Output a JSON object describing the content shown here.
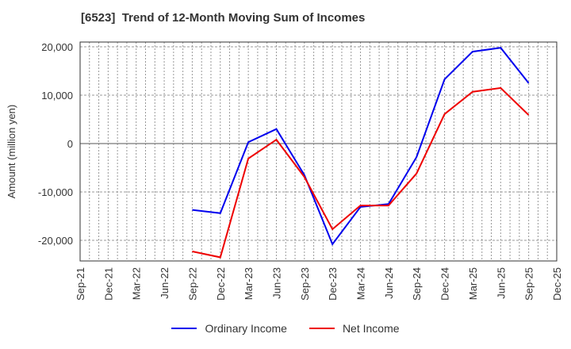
{
  "title": "[6523]  Trend of 12-Month Moving Sum of Incomes",
  "colors": {
    "ordinary": "#0000ee",
    "net": "#ee0000",
    "grid": "#999999",
    "axis": "#333333"
  },
  "chart_data": {
    "type": "line",
    "title": "[6523]  Trend of 12-Month Moving Sum of Incomes",
    "xlabel": "",
    "ylabel": "Amount (million yen)",
    "ylim": [
      -24500,
      21000
    ],
    "yticks": [
      20000,
      10000,
      0,
      -10000,
      -20000
    ],
    "ytick_labels": [
      "20,000",
      "10,000",
      "0",
      "-10,000",
      "-20,000"
    ],
    "x_tick_labels": [
      "Sep-21",
      "Dec-21",
      "Mar-22",
      "Jun-22",
      "Sep-22",
      "Dec-22",
      "Mar-23",
      "Jun-23",
      "Sep-23",
      "Dec-23",
      "Mar-24",
      "Jun-24",
      "Sep-24",
      "Dec-24",
      "Mar-25",
      "Jun-25",
      "Sep-25",
      "Dec-25"
    ],
    "grid": true,
    "legend_position": "bottom",
    "categories": [
      "Sep-22",
      "Dec-22",
      "Mar-23",
      "Jun-23",
      "Sep-23",
      "Dec-23",
      "Mar-24",
      "Jun-24",
      "Sep-24",
      "Dec-24",
      "Mar-25",
      "Jun-25",
      "Sep-25"
    ],
    "series": [
      {
        "name": "Ordinary Income",
        "color": "#0000ee",
        "values": [
          -13700,
          -14400,
          300,
          3000,
          -6500,
          -20800,
          -13100,
          -12500,
          -2800,
          13300,
          19000,
          19800,
          12500
        ]
      },
      {
        "name": "Net Income",
        "color": "#ee0000",
        "values": [
          -22300,
          -23500,
          -3100,
          800,
          -6900,
          -17700,
          -12800,
          -12800,
          -6200,
          6100,
          10700,
          11500,
          5900
        ]
      }
    ]
  },
  "legend": {
    "items": [
      {
        "label": "Ordinary Income",
        "color": "#0000ee"
      },
      {
        "label": "Net Income",
        "color": "#ee0000"
      }
    ]
  }
}
